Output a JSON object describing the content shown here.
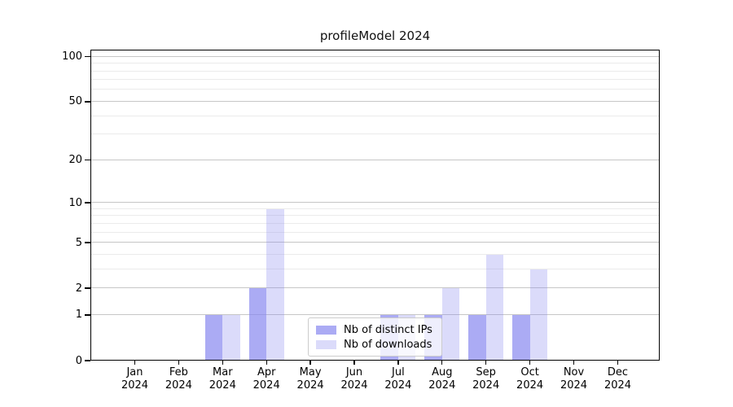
{
  "chart_data": {
    "type": "bar",
    "title": "profileModel 2024",
    "categories": [
      "Jan 2024",
      "Feb 2024",
      "Mar 2024",
      "Apr 2024",
      "May 2024",
      "Jun 2024",
      "Jul 2024",
      "Aug 2024",
      "Sep 2024",
      "Oct 2024",
      "Nov 2024",
      "Dec 2024"
    ],
    "series": [
      {
        "name": "Nb of distinct IPs",
        "color": "rgba(135,135,240,0.7)",
        "values": [
          0,
          0,
          1,
          2,
          0,
          0,
          1,
          1,
          1,
          1,
          0,
          0
        ]
      },
      {
        "name": "Nb of downloads",
        "color": "rgba(135,135,240,0.3)",
        "values": [
          0,
          0,
          1,
          9,
          0,
          0,
          1,
          2,
          4,
          3,
          0,
          0
        ]
      }
    ],
    "yscale": "log1p",
    "ylim": [
      0,
      112
    ],
    "y_ticks": [
      0,
      1,
      2,
      5,
      10,
      20,
      50,
      100
    ],
    "y_minor_ticks": [
      3,
      4,
      6,
      7,
      8,
      9,
      30,
      40,
      60,
      70,
      80,
      90
    ],
    "xlabel": "",
    "ylabel": "",
    "grid": true,
    "legend_position": "lower center",
    "colors": {
      "bar_base": "#8787f0",
      "grid_major": "#c6c6c6",
      "grid_minor": "#ebebeb",
      "spine": "#000000",
      "background": "#ffffff"
    }
  }
}
